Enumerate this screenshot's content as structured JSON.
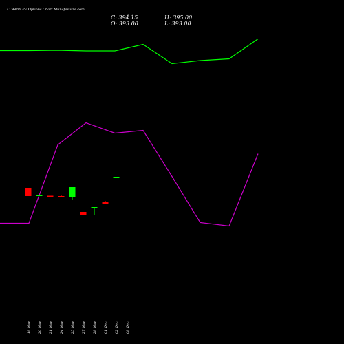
{
  "title": "LT 4400 PE Options Chart Munafasutra.com",
  "ohlc": {
    "close": "C: 394.15",
    "open": "O: 393.00",
    "high": "H: 395.00",
    "low": "L: 393.00"
  },
  "chart_data": {
    "type": "candlestick",
    "categories": [
      "19 Nov",
      "20 Nov",
      "21 Nov",
      "24 Nov",
      "25 Nov",
      "27 Nov",
      "28 Nov",
      "01 Dec",
      "02 Dec",
      "08 Dec"
    ],
    "colors": {
      "up": "#00ff00",
      "down": "#ff0000",
      "green_line": "#00ff00",
      "magenta_line": "#cc00cc"
    },
    "candles": [
      {
        "label": "19 Nov",
        "open": 38,
        "high": 38,
        "low": 26,
        "close": 26,
        "color": "down"
      },
      {
        "label": "20 Nov",
        "open": 27.5,
        "high": 27.5,
        "low": 27.5,
        "close": 27.5,
        "color": "up"
      },
      {
        "label": "21 Nov",
        "open": 26.5,
        "high": 26.5,
        "low": 24,
        "close": 24.5,
        "color": "down"
      },
      {
        "label": "24 Nov",
        "open": 26,
        "high": 27,
        "low": 24,
        "close": 24.5,
        "color": "down"
      },
      {
        "label": "25 Nov",
        "open": 25,
        "high": 39,
        "low": 21,
        "close": 39,
        "color": "up"
      },
      {
        "label": "27 Nov",
        "open": 3,
        "high": 3,
        "low": -1,
        "close": -1,
        "color": "down"
      },
      {
        "label": "28 Nov",
        "open": 8,
        "high": 10,
        "low": -2,
        "close": 10,
        "color": "up"
      },
      {
        "label": "01 Dec",
        "open": 17.5,
        "high": 19,
        "low": 14,
        "close": 14.5,
        "color": "down"
      },
      {
        "label": "02 Dec",
        "open": 54,
        "high": 54,
        "low": 54,
        "close": 54,
        "color": "up"
      }
    ],
    "green_line": [
      425,
      425,
      425.5,
      424.5,
      424.5,
      434,
      406,
      410.5,
      413,
      442
    ],
    "magenta_line": [
      174,
      174,
      288,
      320,
      305,
      309,
      242,
      175,
      170,
      275
    ]
  }
}
